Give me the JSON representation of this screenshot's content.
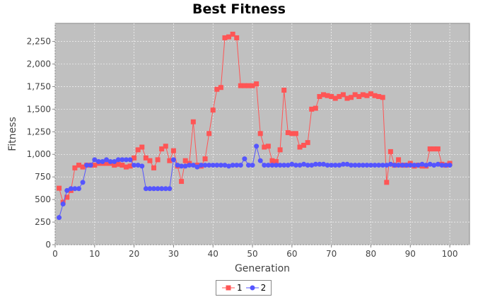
{
  "chart_data": {
    "type": "line",
    "title": "Best Fitness",
    "xlabel": "Generation",
    "ylabel": "Fitness",
    "xlim": [
      0,
      105
    ],
    "ylim": [
      0,
      2450
    ],
    "xticks": [
      0,
      10,
      20,
      30,
      40,
      50,
      60,
      70,
      80,
      90,
      100
    ],
    "xtick_labels": [
      "0",
      "10",
      "20",
      "30",
      "40",
      "50",
      "60",
      "70",
      "80",
      "90",
      "100"
    ],
    "yticks": [
      0,
      250,
      500,
      750,
      1000,
      1250,
      1500,
      1750,
      2000,
      2250
    ],
    "ytick_labels": [
      "0",
      "250",
      "500",
      "750",
      "1,000",
      "1,250",
      "1,500",
      "1,750",
      "2,000",
      "2,250"
    ],
    "grid": true,
    "legend_position": "bottom-center",
    "x": [
      1,
      2,
      3,
      4,
      5,
      6,
      7,
      8,
      9,
      10,
      11,
      12,
      13,
      14,
      15,
      16,
      17,
      18,
      19,
      20,
      21,
      22,
      23,
      24,
      25,
      26,
      27,
      28,
      29,
      30,
      31,
      32,
      33,
      34,
      35,
      36,
      37,
      38,
      39,
      40,
      41,
      42,
      43,
      44,
      45,
      46,
      47,
      48,
      49,
      50,
      51,
      52,
      53,
      54,
      55,
      56,
      57,
      58,
      59,
      60,
      61,
      62,
      63,
      64,
      65,
      66,
      67,
      68,
      69,
      70,
      71,
      72,
      73,
      74,
      75,
      76,
      77,
      78,
      79,
      80,
      81,
      82,
      83,
      84,
      85,
      86,
      87,
      88,
      89,
      90,
      91,
      92,
      93,
      94,
      95,
      96,
      97,
      98,
      99,
      100
    ],
    "series": [
      {
        "name": "1",
        "color": "#ff5555",
        "marker": "square",
        "values": [
          625,
          470,
          525,
          600,
          850,
          880,
          860,
          880,
          880,
          880,
          900,
          900,
          900,
          900,
          880,
          890,
          880,
          860,
          870,
          960,
          1050,
          1080,
          960,
          930,
          850,
          940,
          1060,
          1090,
          930,
          1040,
          870,
          700,
          930,
          900,
          1360,
          880,
          870,
          950,
          1230,
          1490,
          1720,
          1740,
          2290,
          2300,
          2330,
          2290,
          1760,
          1760,
          1760,
          1760,
          1780,
          1230,
          1080,
          1090,
          930,
          920,
          1050,
          1710,
          1240,
          1230,
          1230,
          1080,
          1100,
          1130,
          1500,
          1510,
          1640,
          1660,
          1650,
          1640,
          1620,
          1640,
          1660,
          1620,
          1630,
          1660,
          1640,
          1660,
          1650,
          1670,
          1650,
          1640,
          1630,
          690,
          1030,
          880,
          940,
          880,
          880,
          900,
          870,
          880,
          870,
          870,
          1060,
          1060,
          1060,
          890,
          880,
          900
        ]
      },
      {
        "name": "2",
        "color": "#5555ff",
        "marker": "circle",
        "values": [
          300,
          450,
          600,
          620,
          620,
          620,
          690,
          880,
          880,
          940,
          920,
          920,
          940,
          920,
          920,
          940,
          940,
          940,
          940,
          880,
          880,
          870,
          620,
          620,
          620,
          620,
          620,
          620,
          620,
          940,
          880,
          870,
          870,
          880,
          880,
          860,
          880,
          880,
          880,
          880,
          880,
          880,
          880,
          870,
          880,
          880,
          880,
          950,
          880,
          880,
          1090,
          930,
          880,
          880,
          880,
          880,
          880,
          880,
          880,
          890,
          880,
          880,
          890,
          880,
          880,
          890,
          890,
          890,
          880,
          880,
          880,
          880,
          890,
          890,
          880,
          880,
          880,
          880,
          880,
          880,
          880,
          880,
          880,
          880,
          890,
          880,
          880,
          880,
          880,
          880,
          880,
          880,
          890,
          880,
          890,
          880,
          890,
          880,
          880,
          880
        ]
      }
    ]
  }
}
